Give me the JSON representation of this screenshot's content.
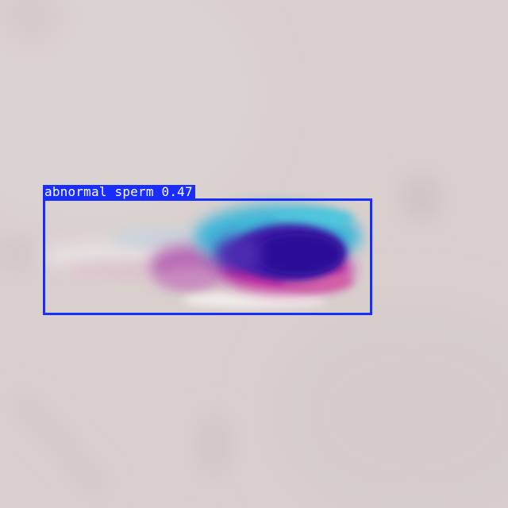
{
  "image": {
    "subject": "stained sperm cell micrograph",
    "background_color": "#d9d0ce"
  },
  "detections": [
    {
      "class_label": "abnormal sperm",
      "confidence": "0.47",
      "box_color": "#1a2dff"
    }
  ]
}
